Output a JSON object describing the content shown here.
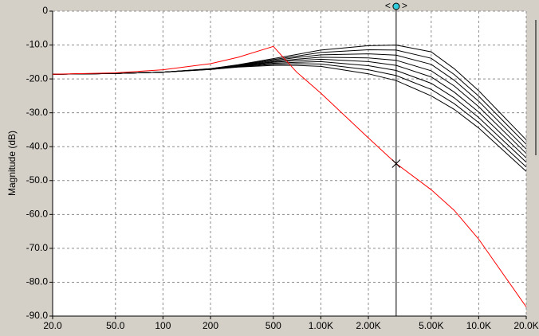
{
  "chart_data": {
    "type": "line",
    "xscale": "log",
    "grid": true,
    "ylabel": "Magnitude  (dB)",
    "x": [
      20,
      50,
      100,
      200,
      300,
      500,
      700,
      1000,
      2000,
      3000,
      5000,
      7000,
      10000,
      20000
    ],
    "xlim": [
      20,
      20000
    ],
    "xticks": [
      {
        "value": 20,
        "label": "20.0"
      },
      {
        "value": 50,
        "label": "50.0"
      },
      100,
      200,
      500,
      {
        "value": 1000,
        "label": "1.00K"
      },
      {
        "value": 2000,
        "label": "2.00K"
      },
      {
        "value": 5000,
        "label": "5.00K"
      },
      {
        "value": 10000,
        "label": "10.0K"
      },
      {
        "value": 20000,
        "label": "20.0K"
      }
    ],
    "ylim": [
      -90,
      0
    ],
    "yticks": [
      0,
      {
        "value": -10,
        "label": "-10.0"
      },
      {
        "value": -20,
        "label": "-20.0"
      },
      {
        "value": -30,
        "label": "-30.0"
      },
      {
        "value": -40,
        "label": "-40.0"
      },
      {
        "value": -50,
        "label": "-50.0"
      },
      {
        "value": -60,
        "label": "-60.0"
      },
      {
        "value": -70,
        "label": "-70.0"
      },
      {
        "value": -80,
        "label": "-80.0"
      },
      {
        "value": -90,
        "label": "-90.0"
      }
    ],
    "series": [
      {
        "color": "#000000",
        "values": [
          -18.6,
          -18.4,
          -18,
          -17.2,
          -16.5,
          -16,
          -16,
          -16.3,
          -18.5,
          -20.5,
          -25,
          -29,
          -34.5,
          -47.3
        ]
      },
      {
        "color": "#000000",
        "values": [
          -18.6,
          -18.4,
          -18,
          -17.2,
          -16.4,
          -15.7,
          -15.5,
          -15.6,
          -17.3,
          -19,
          -23.1,
          -27.3,
          -32.9,
          -46
        ]
      },
      {
        "color": "#000000",
        "values": [
          -18.6,
          -18.4,
          -18,
          -17.1,
          -16.3,
          -15.4,
          -15.1,
          -14.9,
          -16.1,
          -17.5,
          -21.3,
          -25.6,
          -31.4,
          -44.6
        ]
      },
      {
        "color": "#000000",
        "values": [
          -18.6,
          -18.4,
          -18,
          -17.1,
          -16.2,
          -15.1,
          -14.6,
          -14.2,
          -14.9,
          -16,
          -19.4,
          -23.9,
          -29.8,
          -43.3
        ]
      },
      {
        "color": "#000000",
        "values": [
          -18.6,
          -18.4,
          -18,
          -17.1,
          -16.1,
          -14.9,
          -14.2,
          -13.6,
          -13.8,
          -14.5,
          -17.6,
          -22.1,
          -28.2,
          -42
        ]
      },
      {
        "color": "#000000",
        "values": [
          -18.6,
          -18.4,
          -18,
          -17.1,
          -16,
          -14.6,
          -13.7,
          -12.9,
          -12.6,
          -13,
          -15.7,
          -20.4,
          -26.6,
          -40.7
        ]
      },
      {
        "color": "#000000",
        "values": [
          -18.6,
          -18.4,
          -18,
          -17,
          -15.9,
          -14.3,
          -13.3,
          -12.2,
          -11.4,
          -11.5,
          -13.9,
          -18.7,
          -25.1,
          -39.3
        ]
      },
      {
        "color": "#000000",
        "values": [
          -18.6,
          -18.4,
          -18,
          -17,
          -15.8,
          -14,
          -12.8,
          -11.5,
          -10.2,
          -10,
          -12,
          -17,
          -23.5,
          -38
        ]
      },
      {
        "color": "#ff0000",
        "values": [
          -18.6,
          -18.2,
          -17.3,
          -15.5,
          -13.6,
          -10.4,
          -17.9,
          -24.2,
          -37.4,
          -45,
          -52.7,
          -58.8,
          -67.3,
          -87.3
        ]
      }
    ],
    "cursor": {
      "x": 3000,
      "y": -45,
      "handle": [
        "<",
        ">"
      ]
    }
  }
}
